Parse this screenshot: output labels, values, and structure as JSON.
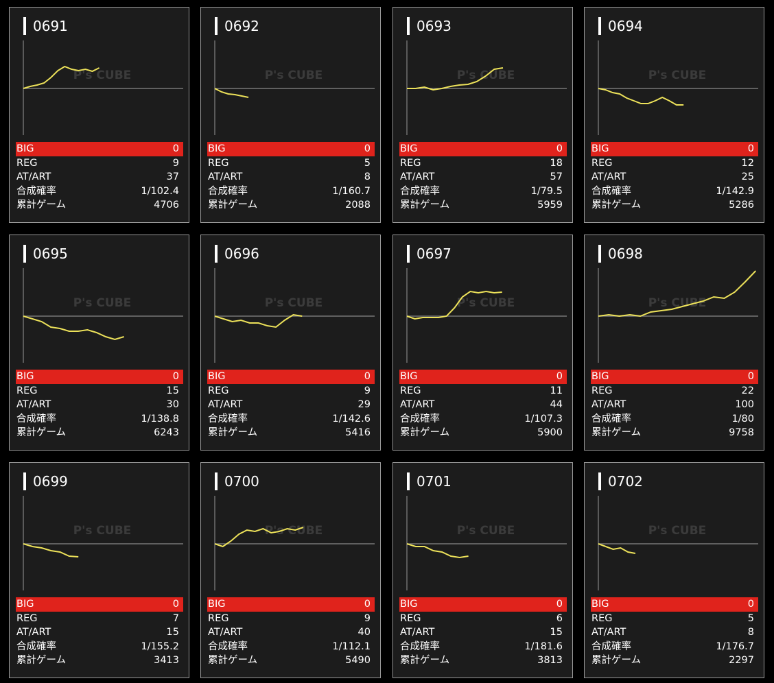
{
  "watermark": "P's CUBE",
  "stat_labels": [
    "BIG",
    "REG",
    "AT/ART",
    "合成確率",
    "累計ゲーム"
  ],
  "cards": [
    {
      "id": "0691",
      "graph": [
        0,
        3,
        5,
        8,
        16,
        26,
        32,
        28,
        26,
        28,
        25,
        30
      ],
      "stats": [
        0,
        9,
        37,
        "1/102.4",
        4706
      ]
    },
    {
      "id": "0692",
      "graph": [
        0,
        -5,
        -8,
        -9,
        -11,
        -13
      ],
      "stats": [
        0,
        5,
        8,
        "1/160.7",
        2088
      ]
    },
    {
      "id": "0693",
      "graph": [
        0,
        0,
        2,
        -2,
        0,
        3,
        5,
        6,
        10,
        18,
        28,
        30
      ],
      "stats": [
        0,
        18,
        57,
        "1/79.5",
        5959
      ]
    },
    {
      "id": "0694",
      "graph": [
        0,
        -2,
        -6,
        -8,
        -14,
        -18,
        -22,
        -22,
        -18,
        -13,
        -18,
        -24,
        -24
      ],
      "stats": [
        0,
        12,
        25,
        "1/142.9",
        5286
      ]
    },
    {
      "id": "0695",
      "graph": [
        0,
        -4,
        -8,
        -16,
        -18,
        -22,
        -22,
        -20,
        -24,
        -30,
        -34,
        -30
      ],
      "stats": [
        0,
        15,
        30,
        "1/138.8",
        6243
      ]
    },
    {
      "id": "0696",
      "graph": [
        0,
        -4,
        -8,
        -6,
        -10,
        -10,
        -14,
        -16,
        -6,
        2,
        0
      ],
      "stats": [
        0,
        9,
        29,
        "1/142.6",
        5416
      ]
    },
    {
      "id": "0697",
      "graph": [
        0,
        -4,
        -2,
        -2,
        -2,
        0,
        12,
        28,
        36,
        34,
        36,
        34,
        35
      ],
      "stats": [
        0,
        11,
        44,
        "1/107.3",
        5900
      ]
    },
    {
      "id": "0698",
      "graph": [
        0,
        2,
        0,
        2,
        0,
        6,
        8,
        10,
        14,
        18,
        22,
        28,
        26,
        35,
        50,
        66
      ],
      "stats": [
        0,
        22,
        100,
        "1/80",
        9758
      ]
    },
    {
      "id": "0699",
      "graph": [
        0,
        -4,
        -6,
        -10,
        -12,
        -18,
        -19
      ],
      "stats": [
        0,
        7,
        15,
        "1/155.2",
        3413
      ]
    },
    {
      "id": "0700",
      "graph": [
        0,
        -4,
        4,
        14,
        20,
        18,
        22,
        16,
        18,
        22,
        20,
        24
      ],
      "stats": [
        0,
        9,
        40,
        "1/112.1",
        5490
      ]
    },
    {
      "id": "0701",
      "graph": [
        0,
        -4,
        -4,
        -10,
        -12,
        -18,
        -20,
        -18
      ],
      "stats": [
        0,
        6,
        15,
        "1/181.6",
        3813
      ]
    },
    {
      "id": "0702",
      "graph": [
        0,
        -4,
        -8,
        -6,
        -12,
        -14
      ],
      "stats": [
        0,
        5,
        8,
        "1/176.7",
        2297
      ]
    }
  ]
}
